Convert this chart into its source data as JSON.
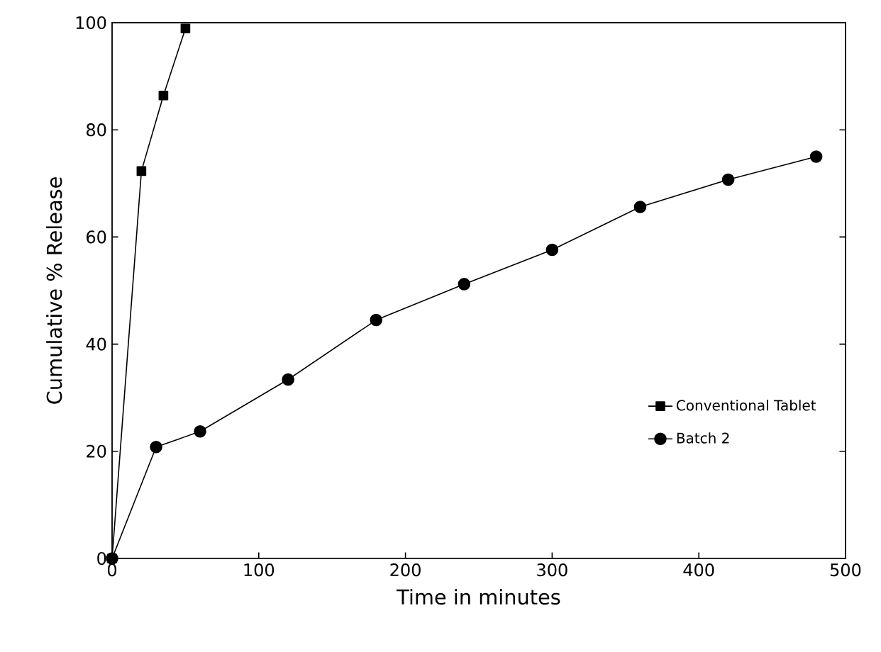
{
  "chart_data": {
    "type": "line",
    "xlabel": "Time in minutes",
    "ylabel": "Cumulative % Release",
    "xlim": [
      0,
      500
    ],
    "xticks": [
      0,
      100,
      200,
      300,
      400,
      500
    ],
    "ylim": [
      0,
      100
    ],
    "yticks": [
      0,
      20,
      40,
      60,
      80,
      100
    ],
    "grid": false,
    "legend": "bottom right",
    "series": [
      {
        "name": "Conventional Tablet",
        "color": "#000000",
        "marker": "square",
        "x": [
          0,
          20,
          35,
          50
        ],
        "values": [
          0,
          72.3,
          86.4,
          98.9
        ]
      },
      {
        "name": "Batch 2",
        "color": "#000000",
        "marker": "circle",
        "x": [
          0,
          30,
          60,
          120,
          180,
          240,
          300,
          360,
          420,
          480
        ],
        "values": [
          0,
          20.8,
          23.7,
          33.4,
          44.5,
          51.2,
          57.6,
          65.6,
          70.7,
          75.0
        ]
      }
    ]
  }
}
